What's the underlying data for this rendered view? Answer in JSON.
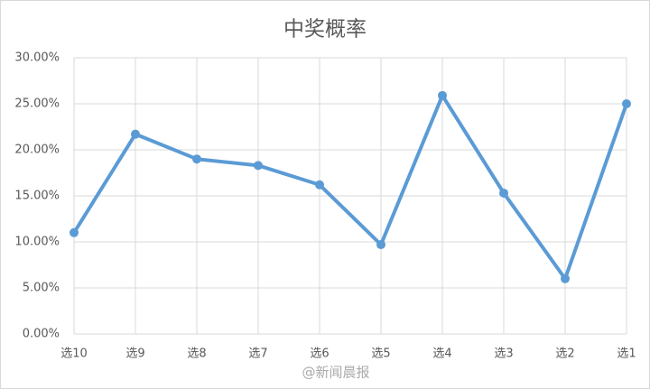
{
  "chart_data": {
    "type": "line",
    "title": "中奖概率",
    "categories": [
      "选10",
      "选9",
      "选8",
      "选7",
      "选6",
      "选5",
      "选4",
      "选3",
      "选2",
      "选1"
    ],
    "values": [
      11.0,
      21.7,
      19.0,
      18.3,
      16.2,
      9.7,
      25.9,
      15.3,
      6.0,
      25.0
    ],
    "color": "#5b9bd5",
    "ylim": [
      0,
      30
    ],
    "yticks": [
      {
        "value": 0,
        "label": "0.00%"
      },
      {
        "value": 5,
        "label": "5.00%"
      },
      {
        "value": 10,
        "label": "10.00%"
      },
      {
        "value": 15,
        "label": "15.00%"
      },
      {
        "value": 20,
        "label": "20.00%"
      },
      {
        "value": 25,
        "label": "25.00%"
      },
      {
        "value": 30,
        "label": "30.00%"
      }
    ],
    "grid": true,
    "watermark": "@新闻晨报"
  }
}
